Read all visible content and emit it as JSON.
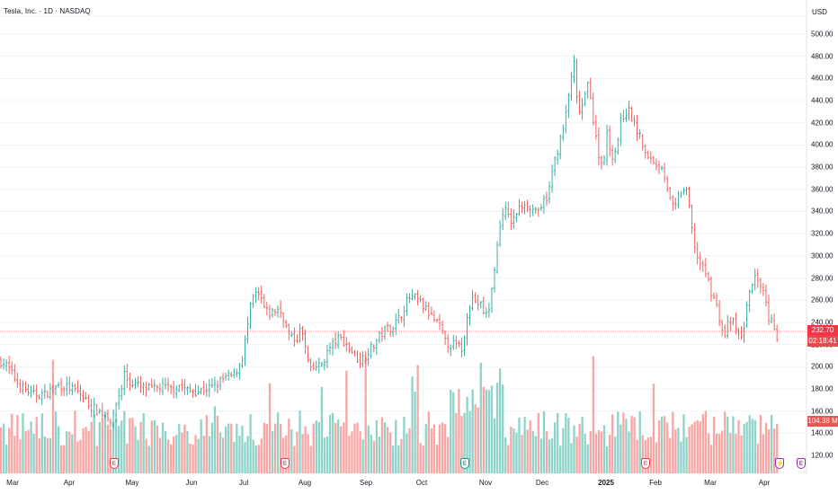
{
  "header": {
    "title": "Tesla, Inc. · 1D · NASDAQ",
    "currency": "USD"
  },
  "price_tag": {
    "value": "232.70",
    "countdown": "02:18:41"
  },
  "volume_tag": {
    "value": "104.38 M"
  },
  "colors": {
    "up": "#26a69a",
    "down": "#ef5350",
    "up_volume": "#8dd3c9",
    "down_volume": "#f7a6a4",
    "grid": "#f0f3fa",
    "price_line": "#f23645"
  },
  "y_axis": {
    "labels": [
      "500.00",
      "480.00",
      "460.00",
      "440.00",
      "420.00",
      "400.00",
      "380.00",
      "360.00",
      "340.00",
      "320.00",
      "300.00",
      "280.00",
      "260.00",
      "240.00",
      "220.00",
      "200.00",
      "180.00",
      "160.00",
      "140.00",
      "120.00"
    ]
  },
  "x_axis": {
    "labels": [
      "Mar",
      "Apr",
      "May",
      "Jun",
      "Jul",
      "Aug",
      "Sep",
      "Oct",
      "Nov",
      "Dec",
      "2025",
      "Feb",
      "Mar",
      "Apr"
    ]
  },
  "events": [
    {
      "type": "earnings",
      "label": "E",
      "color": "red"
    },
    {
      "type": "earnings",
      "label": "E",
      "color": "red"
    },
    {
      "type": "earnings",
      "label": "E",
      "color": "green"
    },
    {
      "type": "earnings",
      "label": "E",
      "color": "red"
    },
    {
      "type": "split",
      "label": "⚡",
      "color": "purple"
    },
    {
      "type": "earnings",
      "label": "E",
      "color": "purple"
    }
  ],
  "chart_data": {
    "type": "ohlc",
    "symbol": "Tesla, Inc.",
    "interval": "1D",
    "exchange": "NASDAQ",
    "ylim": [
      110,
      510
    ],
    "last_price": 232.7,
    "last_volume": "104.38 M",
    "grid": true,
    "series": [
      {
        "name": "price",
        "anchors": [
          [
            0,
            205
          ],
          [
            5,
            203
          ],
          [
            10,
            198
          ],
          [
            20,
            185
          ],
          [
            35,
            175
          ],
          [
            50,
            175
          ],
          [
            65,
            183
          ],
          [
            80,
            180
          ],
          [
            90,
            175
          ],
          [
            100,
            165
          ],
          [
            110,
            160
          ],
          [
            120,
            155
          ],
          [
            125,
            150
          ],
          [
            130,
            170
          ],
          [
            135,
            180
          ],
          [
            138,
            195
          ],
          [
            143,
            185
          ],
          [
            150,
            185
          ],
          [
            160,
            180
          ],
          [
            170,
            180
          ],
          [
            180,
            182
          ],
          [
            190,
            180
          ],
          [
            200,
            183
          ],
          [
            210,
            178
          ],
          [
            220,
            178
          ],
          [
            230,
            180
          ],
          [
            240,
            183
          ],
          [
            250,
            190
          ],
          [
            260,
            192
          ],
          [
            265,
            200
          ],
          [
            270,
            210
          ],
          [
            275,
            235
          ],
          [
            280,
            260
          ],
          [
            285,
            265
          ],
          [
            290,
            262
          ],
          [
            295,
            250
          ],
          [
            300,
            248
          ],
          [
            305,
            250
          ],
          [
            310,
            252
          ],
          [
            315,
            245
          ],
          [
            320,
            230
          ],
          [
            325,
            225
          ],
          [
            330,
            225
          ],
          [
            335,
            235
          ],
          [
            340,
            215
          ],
          [
            345,
            195
          ],
          [
            350,
            200
          ],
          [
            355,
            200
          ],
          [
            360,
            205
          ],
          [
            365,
            215
          ],
          [
            370,
            220
          ],
          [
            375,
            225
          ],
          [
            380,
            225
          ],
          [
            385,
            220
          ],
          [
            390,
            215
          ],
          [
            395,
            210
          ],
          [
            400,
            205
          ],
          [
            405,
            210
          ],
          [
            410,
            215
          ],
          [
            415,
            218
          ],
          [
            420,
            225
          ],
          [
            425,
            230
          ],
          [
            430,
            235
          ],
          [
            435,
            235
          ],
          [
            440,
            240
          ],
          [
            445,
            245
          ],
          [
            450,
            255
          ],
          [
            455,
            262
          ],
          [
            460,
            262
          ],
          [
            465,
            260
          ],
          [
            470,
            255
          ],
          [
            475,
            250
          ],
          [
            480,
            245
          ],
          [
            485,
            240
          ],
          [
            490,
            235
          ],
          [
            495,
            222
          ],
          [
            500,
            220
          ],
          [
            505,
            220
          ],
          [
            510,
            218
          ],
          [
            515,
            215
          ],
          [
            520,
            252
          ],
          [
            525,
            262
          ],
          [
            530,
            258
          ],
          [
            535,
            255
          ],
          [
            540,
            245
          ],
          [
            545,
            255
          ],
          [
            550,
            290
          ],
          [
            555,
            320
          ],
          [
            560,
            345
          ],
          [
            565,
            335
          ],
          [
            570,
            330
          ],
          [
            575,
            340
          ],
          [
            580,
            345
          ],
          [
            585,
            350
          ],
          [
            590,
            340
          ],
          [
            595,
            345
          ],
          [
            600,
            335
          ],
          [
            605,
            350
          ],
          [
            610,
            355
          ],
          [
            615,
            380
          ],
          [
            620,
            395
          ],
          [
            625,
            410
          ],
          [
            630,
            430
          ],
          [
            635,
            460
          ],
          [
            638,
            480
          ],
          [
            640,
            445
          ],
          [
            645,
            430
          ],
          [
            650,
            440
          ],
          [
            655,
            460
          ],
          [
            660,
            420
          ],
          [
            665,
            395
          ],
          [
            670,
            380
          ],
          [
            675,
            410
          ],
          [
            680,
            390
          ],
          [
            685,
            395
          ],
          [
            690,
            420
          ],
          [
            695,
            430
          ],
          [
            700,
            430
          ],
          [
            705,
            420
          ],
          [
            710,
            410
          ],
          [
            715,
            400
          ],
          [
            720,
            385
          ],
          [
            725,
            390
          ],
          [
            730,
            380
          ],
          [
            735,
            385
          ],
          [
            740,
            370
          ],
          [
            745,
            350
          ],
          [
            750,
            340
          ],
          [
            755,
            355
          ],
          [
            760,
            360
          ],
          [
            765,
            355
          ],
          [
            770,
            320
          ],
          [
            775,
            300
          ],
          [
            780,
            290
          ],
          [
            785,
            285
          ],
          [
            790,
            270
          ],
          [
            795,
            260
          ],
          [
            800,
            245
          ],
          [
            805,
            225
          ],
          [
            810,
            240
          ],
          [
            815,
            240
          ],
          [
            820,
            230
          ],
          [
            825,
            225
          ],
          [
            830,
            250
          ],
          [
            835,
            275
          ],
          [
            840,
            280
          ],
          [
            845,
            270
          ],
          [
            850,
            265
          ],
          [
            855,
            240
          ],
          [
            860,
            240
          ],
          [
            865,
            225
          ],
          [
            867,
            232.7
          ]
        ]
      }
    ]
  }
}
